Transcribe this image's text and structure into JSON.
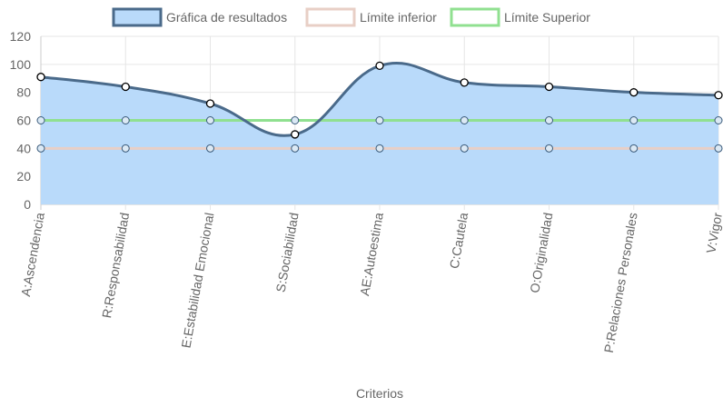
{
  "chart_data": {
    "type": "line",
    "xlabel": "Criterios",
    "ylim": [
      0,
      120
    ],
    "y_ticks": [
      0,
      20,
      40,
      60,
      80,
      100,
      120
    ],
    "grid": true,
    "legend_position": "top",
    "categories": [
      "A:Ascendencia",
      "R:Responsabilidad",
      "E:Estabilidad Emocional",
      "S:Sociabilidad",
      "AE:Autoestima",
      "C:Cautela",
      "O:Originalidad",
      "P:Relaciones Personales",
      "V:Vigor"
    ],
    "series": [
      {
        "name": "Gráfica de resultados",
        "values": [
          91,
          84,
          72,
          50,
          99,
          87,
          84,
          80,
          78
        ],
        "line_color": "#4a6a8a",
        "fill_color": "#b9dafa",
        "fill": true
      },
      {
        "name": "Límite inferior",
        "values": [
          40,
          40,
          40,
          40,
          40,
          40,
          40,
          40,
          40
        ],
        "line_color": "#e8cfc6",
        "fill": false
      },
      {
        "name": "Límite Superior",
        "values": [
          60,
          60,
          60,
          60,
          60,
          60,
          60,
          60,
          60
        ],
        "line_color": "#90e090",
        "fill": false
      }
    ]
  }
}
